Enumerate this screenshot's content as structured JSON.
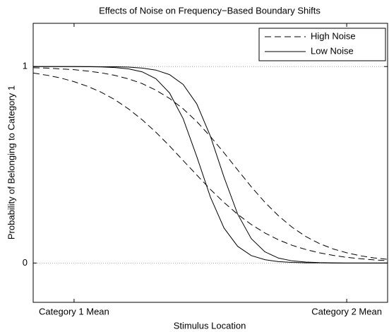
{
  "chart_data": {
    "type": "line",
    "title": "Effects of Noise on Frequency−Based Boundary Shifts",
    "xlabel": "Stimulus Location",
    "ylabel": "Probability of Belonging to Category 1",
    "xlim": [
      -0.15,
      1.15
    ],
    "ylim": [
      -0.2,
      1.22
    ],
    "xticks": [
      {
        "value": 0,
        "label": "Category 1 Mean"
      },
      {
        "value": 1,
        "label": "Category 2 Mean"
      }
    ],
    "yticks": [
      0,
      1
    ],
    "grid": true,
    "legend_position": "upper right",
    "legend": [
      {
        "name": "High Noise",
        "style": "dashed"
      },
      {
        "name": "Low Noise",
        "style": "solid"
      }
    ],
    "x": [
      -0.15,
      -0.1,
      -0.05,
      0,
      0.05,
      0.1,
      0.15,
      0.2,
      0.25,
      0.3,
      0.35,
      0.4,
      0.45,
      0.5,
      0.55,
      0.6,
      0.65,
      0.7,
      0.75,
      0.8,
      0.85,
      0.9,
      0.95,
      1,
      1.05,
      1.1,
      1.15
    ],
    "series": [
      {
        "style": "dashed",
        "color": "#000000",
        "values": [
          0.967,
          0.956,
          0.942,
          0.923,
          0.899,
          0.869,
          0.831,
          0.784,
          0.729,
          0.666,
          0.596,
          0.522,
          0.448,
          0.375,
          0.308,
          0.248,
          0.196,
          0.153,
          0.118,
          0.09,
          0.069,
          0.052,
          0.039,
          0.029,
          0.022,
          0.016,
          0.012
        ]
      },
      {
        "style": "dashed",
        "color": "#000000",
        "values": [
          0.994,
          0.992,
          0.988,
          0.984,
          0.977,
          0.968,
          0.955,
          0.937,
          0.913,
          0.88,
          0.838,
          0.785,
          0.72,
          0.644,
          0.561,
          0.474,
          0.388,
          0.309,
          0.24,
          0.182,
          0.135,
          0.099,
          0.072,
          0.052,
          0.037,
          0.026,
          0.019
        ]
      },
      {
        "style": "solid",
        "color": "#000000",
        "values": [
          1,
          1,
          1,
          1,
          0.999,
          0.998,
          0.995,
          0.988,
          0.973,
          0.938,
          0.866,
          0.735,
          0.542,
          0.336,
          0.178,
          0.085,
          0.038,
          0.017,
          0.007,
          0.003,
          0.001,
          0.001,
          0,
          0,
          0,
          0,
          0
        ]
      },
      {
        "style": "solid",
        "color": "#000000",
        "values": [
          1,
          1,
          1,
          1,
          1,
          0.999,
          0.999,
          0.997,
          0.992,
          0.982,
          0.959,
          0.909,
          0.81,
          0.646,
          0.437,
          0.249,
          0.124,
          0.057,
          0.025,
          0.011,
          0.005,
          0.002,
          0.001,
          0,
          0,
          0,
          0
        ]
      }
    ]
  }
}
